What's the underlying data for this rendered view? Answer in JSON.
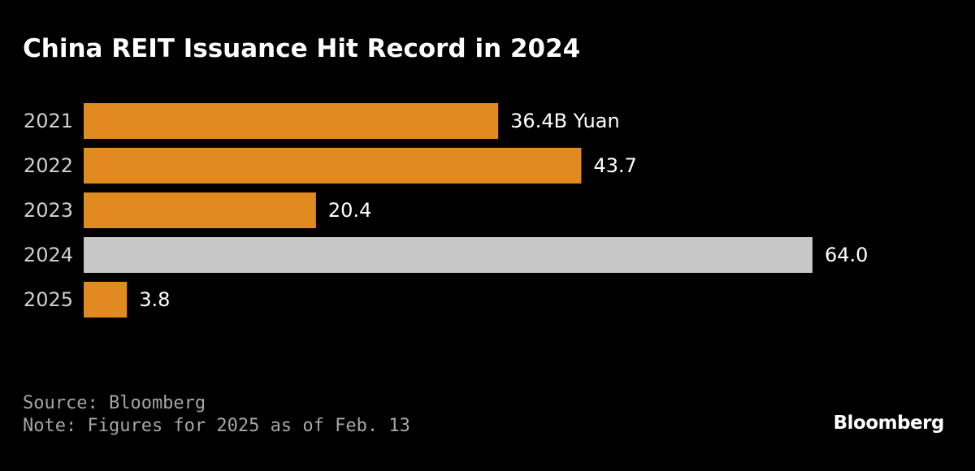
{
  "chart_data": {
    "type": "bar",
    "orientation": "horizontal",
    "title": "China REIT Issuance Hit Record in 2024",
    "categories": [
      "2021",
      "2022",
      "2023",
      "2024",
      "2025"
    ],
    "values": [
      36.4,
      43.7,
      20.4,
      64.0,
      3.8
    ],
    "data_labels": [
      "36.4B Yuan",
      "43.7",
      "20.4",
      "64.0",
      "3.8"
    ],
    "unit": "B Yuan",
    "highlight_category": "2024",
    "xlim": [
      0,
      64
    ],
    "grid": false,
    "legend": "none",
    "colors": {
      "bar": "#e08a20",
      "highlight": "#c7c7c7",
      "background": "#000000",
      "text": "#ffffff",
      "axis_label": "#cfcfcf"
    }
  },
  "footer": {
    "source": "Source: Bloomberg",
    "note": "Note: Figures for 2025 as of Feb. 13"
  },
  "brand": "Bloomberg"
}
